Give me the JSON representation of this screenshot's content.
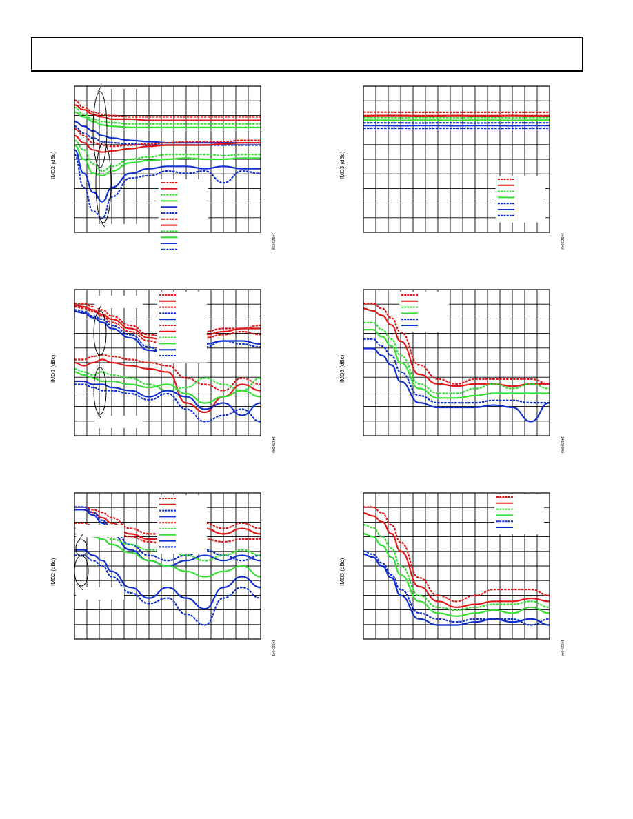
{
  "page": {
    "header_box": "",
    "colors": {
      "blue": "#1030d0",
      "green": "#33e033",
      "red": "#e01818",
      "grid": "#000000"
    }
  },
  "chart_data": [
    {
      "id": "p1",
      "type": "line",
      "ylabel": "IMD2 (dBc)",
      "figure_id": "14820-039",
      "grid": true,
      "legend": "inside-lower-middle",
      "x": [
        0,
        0.05,
        0.1,
        0.15,
        0.2,
        0.3,
        0.4,
        0.5,
        0.6,
        0.7,
        0.8,
        0.9,
        1.0
      ],
      "series": [
        {
          "color": "red",
          "style": "dashed",
          "values": [
            -25,
            -28,
            -30,
            -31,
            -31.5,
            -32,
            -32,
            -32,
            -32,
            -32,
            -32,
            -32,
            -32
          ]
        },
        {
          "color": "red",
          "style": "solid",
          "values": [
            -27,
            -29,
            -31,
            -32,
            -33,
            -33,
            -33.5,
            -33.5,
            -33.5,
            -33.5,
            -33.5,
            -33.5,
            -33.5
          ]
        },
        {
          "color": "green",
          "style": "dashed",
          "values": [
            -28,
            -31,
            -33,
            -34,
            -34.5,
            -35,
            -35,
            -35,
            -35,
            -35,
            -35,
            -35,
            -35
          ]
        },
        {
          "color": "green",
          "style": "solid",
          "values": [
            -30,
            -32,
            -34,
            -35.5,
            -36,
            -36.5,
            -36.5,
            -36.5,
            -36.5,
            -36.5,
            -36.5,
            -36.5,
            -36.5
          ]
        },
        {
          "color": "blue",
          "style": "solid",
          "values": [
            -34,
            -36,
            -38,
            -40,
            -41,
            -42,
            -42.5,
            -43,
            -43,
            -43,
            -43,
            -43,
            -43
          ]
        },
        {
          "color": "blue",
          "style": "dashed",
          "values": [
            -36,
            -39,
            -41,
            -42.5,
            -43,
            -43.5,
            -44,
            -44,
            -44,
            -44,
            -44,
            -44,
            -44
          ]
        },
        {
          "color": "red",
          "style": "dashed",
          "values": [
            -37,
            -40,
            -43,
            -44,
            -44.5,
            -44,
            -43.5,
            -43,
            -42.5,
            -42.5,
            -42.5,
            -42,
            -42
          ]
        },
        {
          "color": "red",
          "style": "solid",
          "values": [
            -40,
            -43,
            -46,
            -47,
            -46.5,
            -45.5,
            -44.5,
            -44,
            -44,
            -44,
            -43.5,
            -43,
            -43
          ]
        },
        {
          "color": "green",
          "style": "dashed",
          "values": [
            -42,
            -46,
            -52,
            -55,
            -53,
            -50,
            -49,
            -48,
            -48,
            -48,
            -48.5,
            -48,
            -48
          ]
        },
        {
          "color": "green",
          "style": "solid",
          "values": [
            -44,
            -50,
            -56,
            -57,
            -55,
            -51.5,
            -50.5,
            -50,
            -49.5,
            -50,
            -50,
            -49.5,
            -49.5
          ]
        },
        {
          "color": "blue",
          "style": "solid",
          "values": [
            -46,
            -56,
            -64,
            -68,
            -62,
            -56,
            -54,
            -53,
            -53,
            -54,
            -53,
            -54,
            -54
          ]
        },
        {
          "color": "blue",
          "style": "dashed",
          "values": [
            -48,
            -62,
            -72,
            -75,
            -66,
            -58,
            -57,
            -55,
            -56,
            -55,
            -60,
            -55,
            -56
          ]
        }
      ]
    },
    {
      "id": "p2",
      "type": "line",
      "ylabel": "IMD3 (dBc)",
      "figure_id": "14820-042",
      "grid": true,
      "legend": "inside-lower-right",
      "x": [
        0,
        0.1,
        0.2,
        0.3,
        0.4,
        0.5,
        0.6,
        0.7,
        0.8,
        0.9,
        1.0
      ],
      "series": [
        {
          "color": "red",
          "style": "dashed",
          "values": [
            -24.5,
            -24.5,
            -24.6,
            -24.6,
            -24.6,
            -24.6,
            -24.6,
            -24.6,
            -24.6,
            -24.6,
            -24.6
          ]
        },
        {
          "color": "red",
          "style": "solid",
          "values": [
            -26.5,
            -26.4,
            -26.4,
            -26.5,
            -26.5,
            -26.4,
            -26.5,
            -26.5,
            -26.4,
            -26.5,
            -26.5
          ]
        },
        {
          "color": "green",
          "style": "dashed",
          "values": [
            -27.5,
            -27.5,
            -27.6,
            -27.5,
            -27.5,
            -27.6,
            -27.5,
            -27.5,
            -27.6,
            -27.5,
            -27.5
          ]
        },
        {
          "color": "green",
          "style": "solid",
          "values": [
            -29,
            -29,
            -29.1,
            -29,
            -29,
            -29.1,
            -29,
            -29,
            -29.1,
            -29,
            -29
          ]
        },
        {
          "color": "blue",
          "style": "dashed",
          "values": [
            -30.5,
            -30.5,
            -30.5,
            -30.6,
            -30.5,
            -30.5,
            -30.6,
            -30.5,
            -30.5,
            -30.5,
            -30.5
          ]
        },
        {
          "color": "blue",
          "style": "solid",
          "values": [
            -32,
            -32,
            -32.1,
            -32,
            -32,
            -32.1,
            -32,
            -32,
            -32.1,
            -32,
            -32
          ]
        },
        {
          "color": "blue",
          "style": "dashed",
          "values": [
            -33.5,
            -33.5,
            -33.5,
            -33.6,
            -33.5,
            -33.5,
            -33.5,
            -33.6,
            -33.5,
            -33.5,
            -33.5
          ]
        }
      ]
    },
    {
      "id": "p3",
      "type": "line",
      "ylabel": "IMD2 (dBc)",
      "figure_id": "14820-040",
      "grid": true,
      "legend": "inside-top-middle",
      "x": [
        0,
        0.05,
        0.1,
        0.15,
        0.2,
        0.3,
        0.4,
        0.5,
        0.6,
        0.7,
        0.8,
        0.9,
        1.0
      ],
      "series": [
        {
          "color": "red",
          "style": "dashed",
          "values": [
            -36,
            -36,
            -37,
            -38,
            -40,
            -43,
            -46,
            -47,
            -47,
            -45,
            -44,
            -44,
            -43
          ]
        },
        {
          "color": "red",
          "style": "solid",
          "values": [
            -36.5,
            -37,
            -38,
            -39.5,
            -41,
            -44,
            -47,
            -48,
            -48,
            -46,
            -45,
            -44,
            -44
          ]
        },
        {
          "color": "red",
          "style": "dashed",
          "values": [
            -37,
            -37.5,
            -38.5,
            -40,
            -42,
            -45,
            -48,
            -50,
            -50,
            -47,
            -46,
            -45,
            -46
          ]
        },
        {
          "color": "blue",
          "style": "dashed",
          "values": [
            -38,
            -38.5,
            -40,
            -41,
            -43,
            -46,
            -50,
            -53,
            -52,
            -50,
            -48,
            -49,
            -50
          ]
        },
        {
          "color": "blue",
          "style": "solid",
          "values": [
            -38.5,
            -39,
            -40.5,
            -42,
            -44,
            -47,
            -51,
            -52,
            -51,
            -49,
            -48,
            -48,
            -49
          ]
        },
        {
          "color": "red",
          "style": "dashed",
          "values": [
            -54,
            -54,
            -53,
            -52.5,
            -53,
            -54,
            -55,
            -56,
            -60,
            -62,
            -64,
            -60,
            -62
          ]
        },
        {
          "color": "red",
          "style": "solid",
          "values": [
            -55,
            -56,
            -55,
            -54,
            -55,
            -56,
            -57,
            -58,
            -68,
            -71,
            -66,
            -62,
            -64
          ]
        },
        {
          "color": "green",
          "style": "dashed",
          "values": [
            -57,
            -58,
            -59,
            -58,
            -59,
            -60,
            -62,
            -64,
            -63,
            -60,
            -62,
            -64,
            -60
          ]
        },
        {
          "color": "green",
          "style": "solid",
          "values": [
            -58,
            -59,
            -60,
            -61,
            -61,
            -62,
            -63,
            -62,
            -65,
            -68,
            -66,
            -64,
            -66
          ]
        },
        {
          "color": "blue",
          "style": "solid",
          "values": [
            -61,
            -61,
            -62,
            -62,
            -63,
            -64,
            -66,
            -64,
            -66,
            -70,
            -68,
            -72,
            -68
          ]
        },
        {
          "color": "blue",
          "style": "dashed",
          "values": [
            -62,
            -62,
            -63,
            -64,
            -64,
            -65,
            -67,
            -65,
            -70,
            -74,
            -72,
            -70,
            -74
          ]
        }
      ]
    },
    {
      "id": "p4",
      "type": "line",
      "ylabel": "IMD3 (dBc)",
      "figure_id": "14820-043",
      "grid": true,
      "legend": "inside-top-left",
      "x": [
        0,
        0.05,
        0.1,
        0.15,
        0.2,
        0.3,
        0.4,
        0.5,
        0.6,
        0.7,
        0.8,
        0.9,
        1.0
      ],
      "series": [
        {
          "color": "red",
          "style": "dashed",
          "values": [
            -33,
            -33,
            -34,
            -36,
            -39,
            -46,
            -49,
            -50,
            -49,
            -49,
            -49,
            -49,
            -50
          ]
        },
        {
          "color": "red",
          "style": "solid",
          "values": [
            -34,
            -34.5,
            -35.5,
            -37.5,
            -41,
            -48,
            -50,
            -50.5,
            -50,
            -50,
            -50.5,
            -50,
            -50
          ]
        },
        {
          "color": "green",
          "style": "dashed",
          "values": [
            -37,
            -37,
            -38.5,
            -40.5,
            -44,
            -50,
            -52,
            -52,
            -51,
            -50,
            -51,
            -50,
            -51
          ]
        },
        {
          "color": "green",
          "style": "solid",
          "values": [
            -38.5,
            -38.5,
            -40,
            -42,
            -45.5,
            -51,
            -53,
            -53,
            -52.5,
            -52,
            -52,
            -52,
            -52
          ]
        },
        {
          "color": "blue",
          "style": "dashed",
          "values": [
            -40.5,
            -40.5,
            -42,
            -44,
            -47.5,
            -52.5,
            -54,
            -54,
            -54,
            -53.5,
            -53.5,
            -54,
            -54
          ]
        },
        {
          "color": "blue",
          "style": "solid",
          "values": [
            -42.5,
            -42.5,
            -44,
            -46,
            -49.5,
            -54,
            -55,
            -55,
            -55,
            -54.5,
            -55,
            -58,
            -54
          ]
        }
      ]
    },
    {
      "id": "p5",
      "type": "line",
      "ylabel": "IMD2 (dBc)",
      "figure_id": "14820-041",
      "grid": true,
      "legend": "inside-top-middle",
      "x": [
        0,
        0.05,
        0.1,
        0.15,
        0.2,
        0.3,
        0.4,
        0.5,
        0.6,
        0.7,
        0.8,
        0.9,
        1.0
      ],
      "series": [
        {
          "color": "red",
          "style": "dashed",
          "values": [
            -43,
            -43,
            -43.5,
            -44,
            -45,
            -47,
            -48,
            -48,
            -47,
            -46,
            -47,
            -46,
            -47
          ]
        },
        {
          "color": "red",
          "style": "solid",
          "values": [
            -43.5,
            -43.5,
            -44,
            -45,
            -46,
            -48,
            -49,
            -49,
            -48,
            -47,
            -48,
            -47,
            -48
          ]
        },
        {
          "color": "blue",
          "style": "dashed",
          "values": [
            -43,
            -43,
            -44,
            -45.5,
            -47,
            -50,
            -52,
            -53,
            -52,
            -51,
            -52,
            -53,
            -52
          ]
        },
        {
          "color": "blue",
          "style": "solid",
          "values": [
            -43.5,
            -43.5,
            -44.5,
            -46,
            -48,
            -51,
            -53,
            -54,
            -53,
            -52,
            -53,
            -52,
            -53
          ]
        },
        {
          "color": "red",
          "style": "dashed",
          "values": [
            -46,
            -46,
            -46.5,
            -47,
            -47.5,
            -48.5,
            -49.5,
            -50,
            -49.5,
            -49,
            -49.5,
            -49,
            -49
          ]
        },
        {
          "color": "green",
          "style": "dashed",
          "values": [
            -47,
            -47,
            -47.5,
            -48,
            -49,
            -50,
            -51,
            -51,
            -52,
            -53,
            -52,
            -51,
            -52
          ]
        },
        {
          "color": "green",
          "style": "solid",
          "values": [
            -48,
            -48,
            -48.5,
            -49,
            -50,
            -51.5,
            -53,
            -54,
            -55,
            -56,
            -55,
            -54,
            -56
          ]
        },
        {
          "color": "blue",
          "style": "solid",
          "values": [
            -51,
            -51,
            -52,
            -53,
            -55,
            -58,
            -60,
            -58,
            -60,
            -62,
            -58,
            -56,
            -58
          ]
        },
        {
          "color": "blue",
          "style": "dashed",
          "values": [
            -52,
            -52,
            -53,
            -54,
            -56,
            -59,
            -61,
            -60,
            -63,
            -65,
            -60,
            -58,
            -60
          ]
        }
      ]
    },
    {
      "id": "p6",
      "type": "line",
      "ylabel": "IMD3 (dBc)",
      "figure_id": "14820-044",
      "grid": true,
      "legend": "inside-top-right",
      "x": [
        0,
        0.05,
        0.1,
        0.15,
        0.2,
        0.3,
        0.4,
        0.5,
        0.6,
        0.7,
        0.8,
        0.9,
        1.0
      ],
      "series": [
        {
          "color": "red",
          "style": "dashed",
          "values": [
            -36,
            -36,
            -37,
            -39,
            -42,
            -48,
            -51,
            -52,
            -51,
            -50,
            -50,
            -50,
            -51
          ]
        },
        {
          "color": "red",
          "style": "solid",
          "values": [
            -37,
            -37.5,
            -38.5,
            -40.5,
            -43.5,
            -49.5,
            -52,
            -53,
            -52.5,
            -52,
            -52,
            -51.5,
            -52
          ]
        },
        {
          "color": "green",
          "style": "dashed",
          "values": [
            -39,
            -39.5,
            -41,
            -43,
            -46,
            -51,
            -53,
            -53.5,
            -53,
            -52.5,
            -52.5,
            -52,
            -53
          ]
        },
        {
          "color": "green",
          "style": "solid",
          "values": [
            -40.5,
            -41,
            -42.5,
            -44.5,
            -47.5,
            -52,
            -54,
            -54.5,
            -54,
            -53.5,
            -54,
            -53,
            -54
          ]
        },
        {
          "color": "blue",
          "style": "dashed",
          "values": [
            -43.5,
            -44,
            -45.5,
            -47.5,
            -50,
            -54,
            -55,
            -55.5,
            -55,
            -55,
            -55,
            -56,
            -55
          ]
        },
        {
          "color": "blue",
          "style": "solid",
          "values": [
            -44,
            -44.5,
            -46,
            -48,
            -51,
            -55,
            -56,
            -56,
            -55.5,
            -55,
            -55.5,
            -55,
            -56
          ]
        }
      ]
    }
  ]
}
